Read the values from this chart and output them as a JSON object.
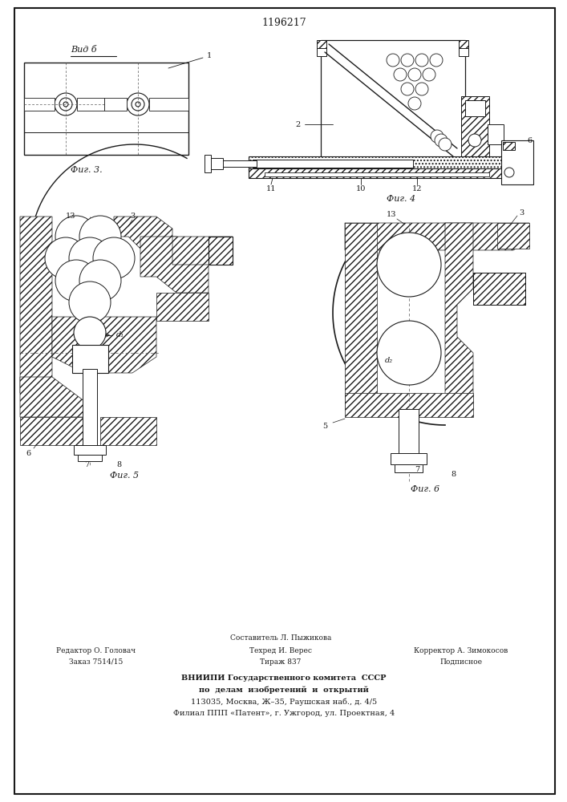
{
  "title": "1196217",
  "background_color": "#ffffff",
  "line_color": "#1a1a1a",
  "fig_width": 7.07,
  "fig_height": 10.0,
  "vid_b_label": "Вид б",
  "fig3_label": "Фиг. 3.",
  "fig4_label": "Фиг. 4",
  "fig5_label": "Фиг. 5",
  "fig6_label": "Фиг. 6",
  "footer": {
    "col1_line1": "Редактор О. Головач",
    "col1_line2": "Заказ 7514/15",
    "col2_line0": "Составитель Л. Пыжикова",
    "col2_line1": "Техред И. Верес",
    "col2_line2": "Тираж 837",
    "col3_line1": "Корректор А. Зимокосов",
    "col3_line2": "Подписное",
    "inst1": "ВНИИПИ Государственного комитета  СССР",
    "inst2": "по  делам  изобретений  и  открытий",
    "inst3": "113035, Москва, Ж–35, Раушская наб., д. 4/5",
    "inst4": "Филиал ППП «Патент», г. Ужгород, ул. Проектная, 4"
  }
}
